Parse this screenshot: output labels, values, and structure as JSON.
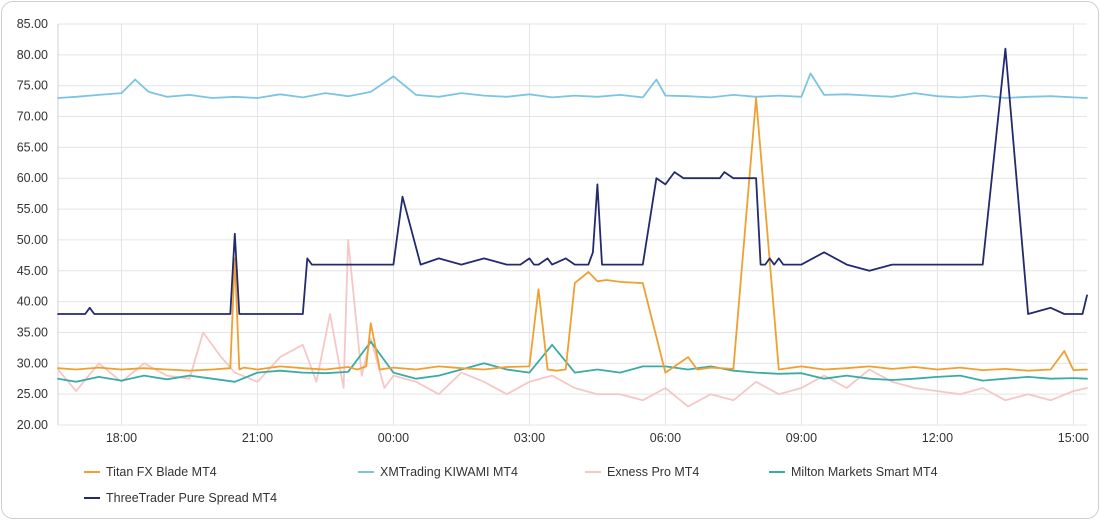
{
  "chart_data": {
    "type": "line",
    "title": "",
    "xlabel": "",
    "ylabel": "",
    "ylim": [
      20,
      85
    ],
    "y_ticks": [
      "85.00",
      "80.00",
      "75.00",
      "70.00",
      "65.00",
      "60.00",
      "55.00",
      "50.00",
      "45.00",
      "40.00",
      "35.00",
      "30.00",
      "25.00",
      "20.00"
    ],
    "x_ticks": [
      "18:00",
      "21:00",
      "00:00",
      "03:00",
      "06:00",
      "09:00",
      "12:00",
      "15:00"
    ],
    "x_tick_hours": [
      18,
      21,
      24,
      27,
      30,
      33,
      36,
      39
    ],
    "xlim_hours": [
      16.6,
      39.3
    ],
    "grid": true,
    "legend_position": "bottom",
    "series": [
      {
        "name": "Titan FX Blade MT4",
        "color": "#f0a030",
        "x": [
          16.6,
          17.0,
          17.5,
          18.0,
          18.5,
          19.0,
          19.5,
          20.0,
          20.4,
          20.5,
          20.6,
          20.7,
          21.0,
          21.5,
          22.0,
          22.5,
          23.0,
          23.2,
          23.4,
          23.5,
          23.7,
          24.0,
          24.5,
          25.0,
          25.5,
          26.0,
          26.5,
          27.0,
          27.2,
          27.4,
          27.6,
          27.8,
          28.0,
          28.3,
          28.5,
          28.7,
          29.0,
          29.5,
          30.0,
          30.5,
          30.7,
          31.0,
          31.5,
          32.0,
          32.5,
          33.0,
          33.5,
          34.0,
          34.5,
          35.0,
          35.5,
          36.0,
          36.5,
          37.0,
          37.5,
          38.0,
          38.5,
          38.8,
          39.0,
          39.3
        ],
        "y": [
          29.2,
          29,
          29.3,
          29,
          29.2,
          29,
          28.8,
          29,
          29.2,
          47,
          29,
          29.3,
          29,
          29.5,
          29.2,
          29,
          29.4,
          29,
          29.5,
          36.5,
          29,
          29.3,
          29,
          29.5,
          29.2,
          29,
          29.4,
          29.5,
          42,
          29,
          28.8,
          29,
          43,
          44.8,
          43.3,
          43.5,
          43.2,
          43,
          28.5,
          31,
          29,
          29.3,
          29.1,
          73,
          29,
          29.5,
          29,
          29.2,
          29.5,
          29.1,
          29.4,
          29,
          29.3,
          28.9,
          29.1,
          28.8,
          29,
          32,
          28.9,
          29
        ]
      },
      {
        "name": "XMTrading KIWAMI MT4",
        "color": "#7cc4e4",
        "x": [
          16.6,
          17.0,
          17.5,
          18.0,
          18.3,
          18.6,
          19.0,
          19.5,
          20.0,
          20.5,
          21.0,
          21.5,
          22.0,
          22.5,
          23.0,
          23.5,
          24.0,
          24.5,
          25.0,
          25.5,
          26.0,
          26.5,
          27.0,
          27.5,
          28.0,
          28.5,
          29.0,
          29.5,
          29.8,
          30.0,
          30.5,
          31.0,
          31.5,
          32.0,
          32.5,
          33.0,
          33.2,
          33.5,
          34.0,
          34.5,
          35.0,
          35.5,
          36.0,
          36.5,
          37.0,
          37.5,
          38.0,
          38.5,
          39.0,
          39.3
        ],
        "y": [
          73,
          73.2,
          73.5,
          73.8,
          76,
          74,
          73.2,
          73.5,
          73,
          73.2,
          73,
          73.6,
          73.1,
          73.8,
          73.3,
          74,
          76.5,
          73.5,
          73.2,
          73.8,
          73.4,
          73.2,
          73.6,
          73.1,
          73.4,
          73.2,
          73.5,
          73.1,
          76,
          73.4,
          73.3,
          73.1,
          73.5,
          73.2,
          73.4,
          73.2,
          77,
          73.5,
          73.6,
          73.4,
          73.2,
          73.8,
          73.3,
          73.1,
          73.4,
          73,
          73.2,
          73.3,
          73.1,
          73
        ]
      },
      {
        "name": "Exness Pro MT4",
        "color": "#f6c7c7",
        "x": [
          16.6,
          17.0,
          17.5,
          18.0,
          18.5,
          19.0,
          19.5,
          19.8,
          20.2,
          20.5,
          21.0,
          21.5,
          22.0,
          22.3,
          22.6,
          22.9,
          23.0,
          23.3,
          23.5,
          23.8,
          24.0,
          24.5,
          25.0,
          25.5,
          26.0,
          26.5,
          27.0,
          27.5,
          28.0,
          28.5,
          29.0,
          29.5,
          30.0,
          30.5,
          31.0,
          31.5,
          32.0,
          32.5,
          33.0,
          33.5,
          34.0,
          34.5,
          35.0,
          35.5,
          36.0,
          36.5,
          37.0,
          37.5,
          38.0,
          38.5,
          39.0,
          39.3
        ],
        "y": [
          29,
          25.5,
          30,
          27,
          30,
          28,
          27.5,
          35,
          31,
          28.5,
          27,
          31,
          33,
          27,
          38,
          26,
          50,
          28,
          34,
          26,
          28,
          27,
          25,
          28.5,
          27,
          25,
          27,
          28,
          26,
          25,
          25,
          24,
          26,
          23,
          25,
          24,
          27,
          25,
          26,
          28,
          26,
          29,
          27,
          26,
          25.5,
          25,
          26,
          24,
          25,
          24,
          25.5,
          26
        ]
      },
      {
        "name": "Milton Markets Smart MT4",
        "color": "#3aaba6",
        "x": [
          16.6,
          17.0,
          17.5,
          18.0,
          18.5,
          19.0,
          19.5,
          20.0,
          20.5,
          21.0,
          21.5,
          22.0,
          22.5,
          23.0,
          23.5,
          24.0,
          24.5,
          25.0,
          25.5,
          26.0,
          26.5,
          27.0,
          27.5,
          28.0,
          28.5,
          29.0,
          29.5,
          30.0,
          30.5,
          31.0,
          31.5,
          32.0,
          32.5,
          33.0,
          33.5,
          34.0,
          34.5,
          35.0,
          35.5,
          36.0,
          36.5,
          37.0,
          37.5,
          38.0,
          38.5,
          39.0,
          39.3
        ],
        "y": [
          27.5,
          27,
          27.8,
          27.2,
          28,
          27.4,
          28,
          27.5,
          27,
          28.5,
          28.8,
          28.5,
          28.4,
          28.6,
          33.5,
          28.5,
          27.5,
          28,
          29,
          30,
          29,
          28.5,
          33,
          28.5,
          29,
          28.5,
          29.5,
          29.5,
          29,
          29.5,
          28.8,
          28.5,
          28.3,
          28.4,
          27.5,
          28,
          27.5,
          27.3,
          27.5,
          27.8,
          28,
          27.2,
          27.5,
          27.8,
          27.5,
          27.6,
          27.5
        ]
      },
      {
        "name": "ThreeTrader Pure Spread MT4",
        "color": "#232a6e",
        "x": [
          16.6,
          17.2,
          17.3,
          17.4,
          18.0,
          19.0,
          20.0,
          20.4,
          20.5,
          20.6,
          20.8,
          21.0,
          21.5,
          22.0,
          22.1,
          22.2,
          22.5,
          23.0,
          23.5,
          24.0,
          24.2,
          24.6,
          25.0,
          25.5,
          26.0,
          26.5,
          26.8,
          27.0,
          27.1,
          27.2,
          27.4,
          27.5,
          27.8,
          28.0,
          28.3,
          28.4,
          28.5,
          28.6,
          29.0,
          29.2,
          29.5,
          29.8,
          30.0,
          30.2,
          30.4,
          30.6,
          31.0,
          31.2,
          31.3,
          31.5,
          31.6,
          31.8,
          32.0,
          32.1,
          32.2,
          32.3,
          32.4,
          32.5,
          32.6,
          33.0,
          33.5,
          34.0,
          34.5,
          35.0,
          35.5,
          36.0,
          36.5,
          37.0,
          37.5,
          38.0,
          38.5,
          38.8,
          39.0,
          39.2,
          39.3
        ],
        "y": [
          38,
          38,
          39,
          38,
          38,
          38,
          38,
          38,
          51,
          38,
          38,
          38,
          38,
          38,
          47,
          46,
          46,
          46,
          46,
          46,
          57,
          46,
          47,
          46,
          47,
          46,
          46,
          47,
          46,
          46,
          47,
          46,
          47,
          46,
          46,
          48,
          59,
          46,
          46,
          46,
          46,
          60,
          59,
          61,
          60,
          60,
          60,
          60,
          61,
          60,
          60,
          60,
          60,
          46,
          46,
          47,
          46,
          47,
          46,
          46,
          48,
          46,
          45,
          46,
          46,
          46,
          46,
          46,
          81,
          38,
          39,
          38,
          38,
          38,
          41
        ]
      }
    ]
  }
}
